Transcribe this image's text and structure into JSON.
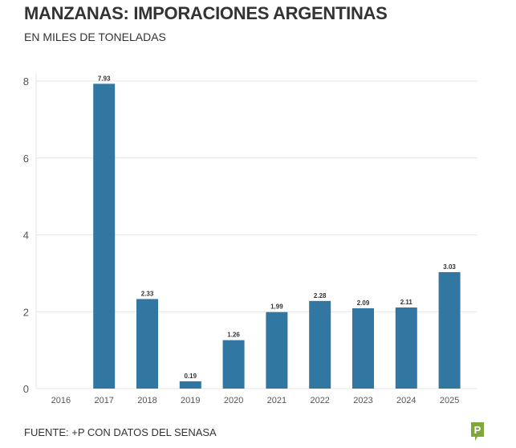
{
  "title": "MANZANAS: IMPORACIONES ARGENTINAS",
  "subtitle": "EN MILES DE TONELADAS",
  "source": "FUENTE: +P CON DATOS DEL SENASA",
  "colors": {
    "bar": "#3277a1",
    "logo": "#7fa83a"
  },
  "chart_data": {
    "type": "bar",
    "categories": [
      "2016",
      "2017",
      "2018",
      "2019",
      "2020",
      "2021",
      "2022",
      "2023",
      "2024",
      "2025"
    ],
    "values": [
      null,
      7.93,
      2.33,
      0.19,
      1.26,
      1.99,
      2.28,
      2.09,
      2.11,
      3.03
    ],
    "data_labels": [
      null,
      "7.93",
      "2.33",
      "0.19",
      "1.26",
      "1.99",
      "2.28",
      "2.09",
      "2.11",
      "3.03"
    ],
    "ylim": [
      0,
      8
    ],
    "yticks": [
      0,
      2,
      4,
      6,
      8
    ],
    "grid": true,
    "xlabel": "",
    "ylabel": ""
  }
}
